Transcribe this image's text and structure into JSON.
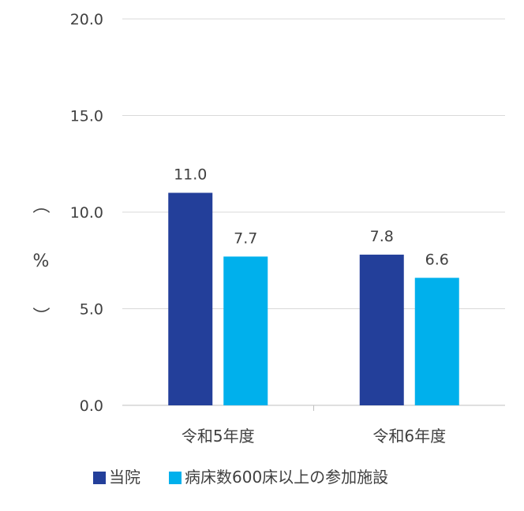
{
  "chart_data": {
    "type": "bar",
    "categories": [
      "令和5年度",
      "令和6年度"
    ],
    "series": [
      {
        "name": "当院",
        "values": [
          11.0,
          7.8
        ],
        "color": "#233f9a"
      },
      {
        "name": "病床数600床以上の参加施設",
        "values": [
          7.7,
          6.6
        ],
        "color": "#00b0ec"
      }
    ],
    "ylabel": "（%）",
    "ylim": [
      0,
      20
    ],
    "yticks": [
      "0.0",
      "5.0",
      "10.0",
      "15.0",
      "20.0"
    ],
    "grid": true,
    "legend": "bottom"
  }
}
